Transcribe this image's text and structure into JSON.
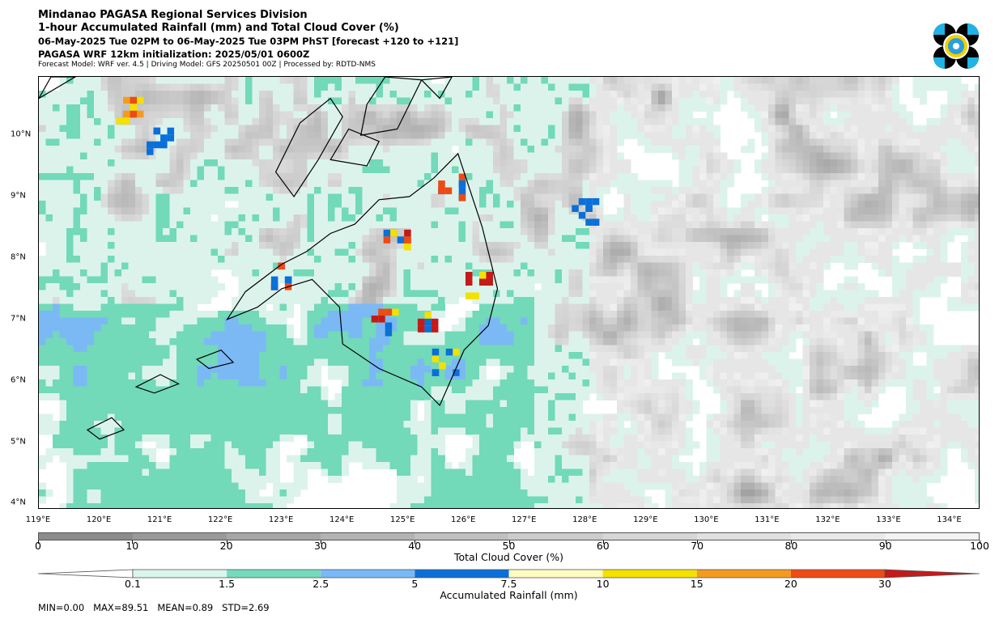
{
  "header": {
    "line1": "Mindanao PAGASA Regional Services Division",
    "line2": "1-hour Accumulated Rainfall (mm) and Total Cloud Cover (%)",
    "line3": "06-May-2025 Tue 02PM to 06-May-2025 Tue 03PM PhST [forecast +120 to +121]",
    "line4": "PAGASA WRF 12km initialization: 2025/05/01 0600Z",
    "line5": "Forecast Model: WRF ver. 4.5 | Driving Model: GFS 20250501 00Z | Processed by: RDTD-NMS"
  },
  "map": {
    "lon_range": [
      119,
      134.5
    ],
    "lat_range": [
      3.9,
      10.95
    ],
    "lat_labels": [
      "4°N",
      "5°N",
      "6°N",
      "7°N",
      "8°N",
      "9°N",
      "10°N"
    ],
    "lon_labels": [
      "119°E",
      "120°E",
      "121°E",
      "122°E",
      "123°E",
      "124°E",
      "125°E",
      "126°E",
      "127°E",
      "128°E",
      "129°E",
      "130°E",
      "131°E",
      "132°E",
      "133°E",
      "134°E"
    ]
  },
  "cloud_colorbar": {
    "ticks": [
      "0",
      "10",
      "20",
      "30",
      "40",
      "50",
      "60",
      "70",
      "80",
      "90",
      "100"
    ],
    "label": "Total Cloud Cover (%)",
    "colors": [
      "#8c8c8c",
      "#999999",
      "#a6a6a6",
      "#b3b3b3",
      "#c0c0c0",
      "#cccccc",
      "#d6d6d6",
      "#e0e0e0",
      "#e9e9e9",
      "#f3f3f3"
    ]
  },
  "rain_colorbar": {
    "ticks": [
      "0.1",
      "1.5",
      "2.5",
      "5",
      "7.5",
      "10",
      "15",
      "20",
      "30"
    ],
    "label": "Accumulated Rainfall (mm)",
    "colors": [
      "#d9f5ec",
      "#72dbbb",
      "#79b9f7",
      "#0a6fd8",
      "#fdfcc0",
      "#f3e100",
      "#f49b1f",
      "#ee4b14",
      "#c41a1a"
    ]
  },
  "stats": {
    "text": "MIN=0.00   MAX=89.51   MEAN=0.89   STD=2.69"
  },
  "colors": {
    "light_teal": "#dcf3ec",
    "teal": "#70d9b8",
    "light_blue": "#7bb9f5",
    "blue": "#0a6cd6",
    "yellow": "#f5e000",
    "orange": "#f49520",
    "red": "#d81b1b",
    "cloud_gray": "#9e9e9e"
  },
  "logo": {
    "icon": "pagasa-logo-icon"
  }
}
